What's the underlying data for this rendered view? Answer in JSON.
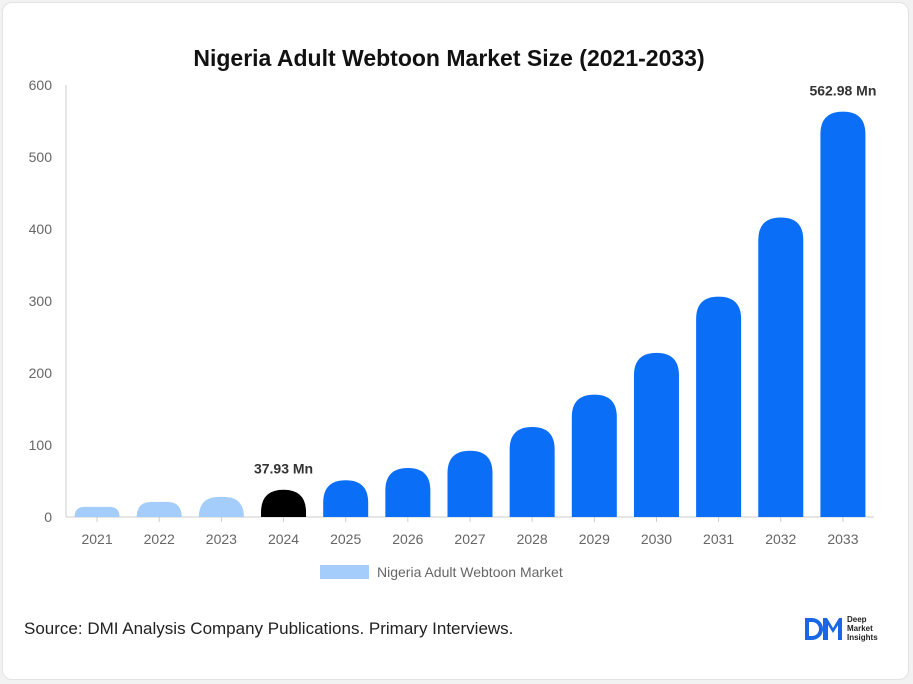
{
  "chart_data": {
    "type": "bar",
    "title": "Nigeria Adult Webtoon Market Size (2021-2033)",
    "categories": [
      "2021",
      "2022",
      "2023",
      "2024",
      "2025",
      "2026",
      "2027",
      "2028",
      "2029",
      "2030",
      "2031",
      "2032",
      "2033"
    ],
    "series": [
      {
        "name": "Nigeria Adult Webtoon Market",
        "values": [
          14,
          21,
          28,
          37.93,
          51,
          68,
          92,
          125,
          170,
          228,
          306,
          416,
          562.98
        ]
      }
    ],
    "ylim": [
      0,
      600
    ],
    "yticks": [
      0,
      100,
      200,
      300,
      400,
      500,
      600
    ],
    "data_labels": [
      {
        "category": "2024",
        "text": "37.93 Mn"
      },
      {
        "category": "2033",
        "text": "562.98 Mn"
      }
    ],
    "grid": false,
    "legend_position": "bottom",
    "colors": {
      "historical": "#a4cdfb",
      "base_year": "#000000",
      "forecast": "#0a6ef7",
      "legend_swatch": "#a4cdfb"
    }
  },
  "source": {
    "label": "Source",
    "text": ": DMI Analysis Company Publications. Primary Interviews."
  },
  "logo": {
    "mark": "DM",
    "line1": "Deep",
    "line2": "Market",
    "line3": "Insights"
  }
}
